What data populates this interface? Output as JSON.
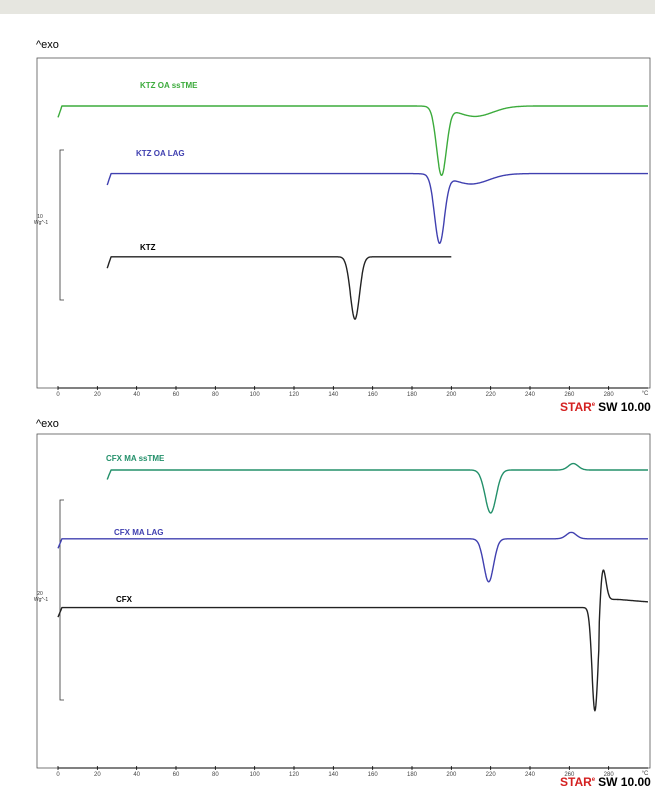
{
  "colors": {
    "green": "#3cab3c",
    "teal_green": "#23906a",
    "blue": "#4040b0",
    "black": "#222222",
    "brand_red": "#d42020"
  },
  "chart_data": [
    {
      "type": "line",
      "title": "",
      "exo_label": "^exo",
      "xlabel": "",
      "x_unit": "°C",
      "xlim": [
        0,
        300
      ],
      "x_ticks": [
        0,
        20,
        40,
        60,
        80,
        100,
        120,
        140,
        160,
        180,
        200,
        220,
        240,
        260,
        280
      ],
      "scale_bar_value": "10",
      "scale_bar_unit": "Wg^-1",
      "brand_star": "STAR",
      "brand_reg": "e",
      "brand_sw": "SW 10.00",
      "series": [
        {
          "name": "KTZ OA ssTME",
          "color": "green",
          "x_start": 0,
          "x_end": 300,
          "baseline": 0,
          "events": [
            {
              "type": "endotherm",
              "x": 195,
              "depth": -13,
              "width": 2.5
            },
            {
              "type": "broad_endotherm",
              "x": 212,
              "depth": -2,
              "width": 9
            }
          ]
        },
        {
          "name": "KTZ OA LAG",
          "color": "blue",
          "x_start": 25,
          "x_end": 300,
          "baseline": -13,
          "events": [
            {
              "type": "endotherm",
              "x": 194,
              "depth": -13,
              "width": 2.5
            },
            {
              "type": "broad_endotherm",
              "x": 210,
              "depth": -2,
              "width": 9
            }
          ]
        },
        {
          "name": "KTZ",
          "color": "black",
          "x_start": 25,
          "x_end": 200,
          "baseline": -29,
          "events": [
            {
              "type": "endotherm",
              "x": 151,
              "depth": -12,
              "width": 2.3
            }
          ]
        }
      ]
    },
    {
      "type": "line",
      "title": "",
      "exo_label": "^exo",
      "xlabel": "",
      "x_unit": "°C",
      "xlim": [
        0,
        300
      ],
      "x_ticks": [
        0,
        20,
        40,
        60,
        80,
        100,
        120,
        140,
        160,
        180,
        200,
        220,
        240,
        260,
        280
      ],
      "scale_bar_value": "20",
      "scale_bar_unit": "Wg^-1",
      "brand_star": "STAR",
      "brand_reg": "e",
      "brand_sw": "SW 10.00",
      "series": [
        {
          "name": "CFX MA ssTME",
          "color": "teal_green",
          "x_start": 25,
          "x_end": 300,
          "baseline": 0,
          "events": [
            {
              "type": "endotherm",
              "x": 220,
              "depth": -10,
              "width": 2.8
            },
            {
              "type": "exotherm",
              "x": 262,
              "depth": 1.5,
              "width": 2.5
            }
          ]
        },
        {
          "name": "CFX MA LAG",
          "color": "blue",
          "x_start": 0,
          "x_end": 300,
          "baseline": -16,
          "events": [
            {
              "type": "endotherm",
              "x": 219,
              "depth": -10,
              "width": 2.5
            },
            {
              "type": "exotherm",
              "x": 261,
              "depth": 1.5,
              "width": 2.5
            }
          ]
        },
        {
          "name": "CFX",
          "color": "black",
          "x_start": 0,
          "x_end": 300,
          "baseline": -32,
          "events": [
            {
              "type": "melt_decomp",
              "x": 273,
              "depth": -24,
              "width": 1.5
            }
          ]
        }
      ]
    }
  ]
}
